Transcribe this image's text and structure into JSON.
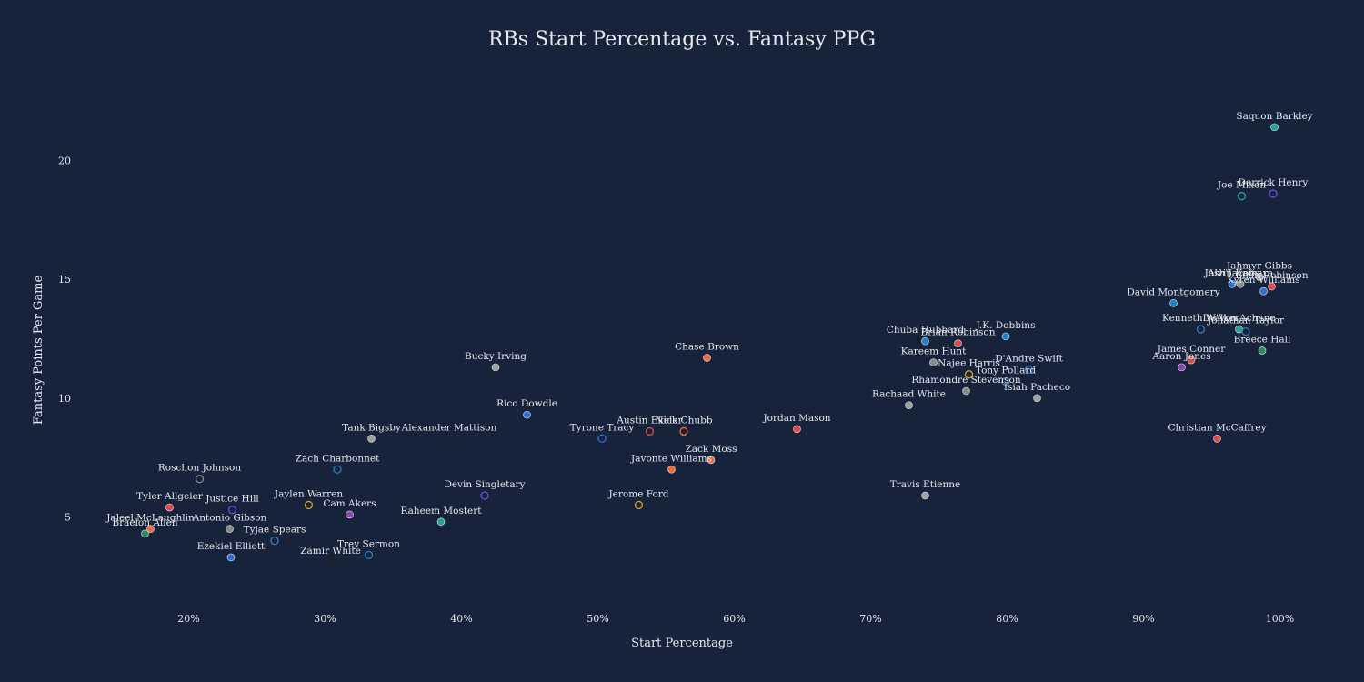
{
  "chart_data": {
    "type": "scatter",
    "title": "RBs Start Percentage vs. Fantasy PPG",
    "xlabel": "Start Percentage",
    "ylabel": "Fantasy Points Per Game",
    "xlim": [
      11.5,
      103.5
    ],
    "ylim": [
      1.5,
      23.5
    ],
    "x_ticks": [
      20,
      30,
      40,
      50,
      60,
      70,
      80,
      90,
      100
    ],
    "x_tick_labels": [
      "20%",
      "30%",
      "40%",
      "50%",
      "60%",
      "70%",
      "80%",
      "90%",
      "100%"
    ],
    "y_ticks": [
      5,
      10,
      15,
      20
    ],
    "y_tick_labels": [
      "5",
      "10",
      "15",
      "20"
    ],
    "grid": false,
    "points": [
      {
        "name": "Saquon Barkley",
        "x": 99.6,
        "y": 21.4,
        "color": "#2aa198",
        "hollow": false
      },
      {
        "name": "Derrick Henry",
        "x": 99.5,
        "y": 18.6,
        "color": "#6c4bd8",
        "hollow": true
      },
      {
        "name": "Joe Mixon",
        "x": 97.2,
        "y": 18.5,
        "color": "#2aa198",
        "hollow": true
      },
      {
        "name": "Jahmyr Gibbs",
        "x": 98.5,
        "y": 15.1,
        "color": "#a0a0a0",
        "hollow": false
      },
      {
        "name": "Josh Jacobs",
        "x": 96.5,
        "y": 14.8,
        "color": "#2f6fd6",
        "hollow": false
      },
      {
        "name": "Alvin Kamara",
        "x": 97.1,
        "y": 14.8,
        "color": "#8a8a8a",
        "hollow": false
      },
      {
        "name": "Bijan Robinson",
        "x": 99.4,
        "y": 14.7,
        "color": "#e04848",
        "hollow": false
      },
      {
        "name": "Kyren Williams",
        "x": 98.8,
        "y": 14.5,
        "color": "#2f6fd6",
        "hollow": false
      },
      {
        "name": "David Montgomery",
        "x": 92.2,
        "y": 14.0,
        "color": "#2080c8",
        "hollow": false
      },
      {
        "name": "Kenneth Walker",
        "x": 94.2,
        "y": 12.9,
        "color": "#3b7ab8",
        "hollow": true
      },
      {
        "name": "De'Von Achane",
        "x": 97.0,
        "y": 12.9,
        "color": "#2aa198",
        "hollow": false
      },
      {
        "name": "Jonathan Taylor",
        "x": 97.5,
        "y": 12.8,
        "color": "#3b7ab8",
        "hollow": true
      },
      {
        "name": "Breece Hall",
        "x": 98.7,
        "y": 12.0,
        "color": "#2e8b57",
        "hollow": false
      },
      {
        "name": "James Conner",
        "x": 93.5,
        "y": 11.6,
        "color": "#e04848",
        "hollow": false
      },
      {
        "name": "Aaron Jones",
        "x": 92.8,
        "y": 11.3,
        "color": "#8e44ad",
        "hollow": false
      },
      {
        "name": "Christian McCaffrey",
        "x": 95.4,
        "y": 8.3,
        "color": "#e04848",
        "hollow": false
      },
      {
        "name": "J.K. Dobbins",
        "x": 79.9,
        "y": 12.6,
        "color": "#2080c8",
        "hollow": false
      },
      {
        "name": "Chuba Hubbard",
        "x": 74.0,
        "y": 12.4,
        "color": "#2080c8",
        "hollow": false
      },
      {
        "name": "Brian Robinson",
        "x": 76.4,
        "y": 12.3,
        "color": "#e04848",
        "hollow": false
      },
      {
        "name": "Kareem Hunt",
        "x": 74.6,
        "y": 11.5,
        "color": "#8a8a8a",
        "hollow": false
      },
      {
        "name": "Najee Harris",
        "x": 77.2,
        "y": 11.0,
        "color": "#d4a017",
        "hollow": true
      },
      {
        "name": "D'Andre Swift",
        "x": 81.6,
        "y": 11.2,
        "color": "#2f6fd6",
        "hollow": true
      },
      {
        "name": "Tony Pollard",
        "x": 79.9,
        "y": 10.7,
        "color": "#3b7ab8",
        "hollow": true
      },
      {
        "name": "Rhamondre Stevenson",
        "x": 77.0,
        "y": 10.3,
        "color": "#8a8a8a",
        "hollow": false
      },
      {
        "name": "Isiah Pacheco",
        "x": 82.2,
        "y": 10.0,
        "color": "#a0a0a0",
        "hollow": false
      },
      {
        "name": "Rachaad White",
        "x": 72.8,
        "y": 9.7,
        "color": "#a0a0a0",
        "hollow": false
      },
      {
        "name": "Travis Etienne",
        "x": 74.0,
        "y": 5.9,
        "color": "#a0a0a0",
        "hollow": false
      },
      {
        "name": "Chase Brown",
        "x": 58.0,
        "y": 11.7,
        "color": "#f06a3b",
        "hollow": false
      },
      {
        "name": "Bucky Irving",
        "x": 42.5,
        "y": 11.3,
        "color": "#a0a0a0",
        "hollow": false
      },
      {
        "name": "Rico Dowdle",
        "x": 44.8,
        "y": 9.3,
        "color": "#2f6fd6",
        "hollow": false
      },
      {
        "name": "Jordan Mason",
        "x": 64.6,
        "y": 8.7,
        "color": "#e04848",
        "hollow": false
      },
      {
        "name": "Austin Ekeler",
        "x": 53.8,
        "y": 8.6,
        "color": "#e04848",
        "hollow": true
      },
      {
        "name": "Nick Chubb",
        "x": 56.3,
        "y": 8.6,
        "color": "#f06a3b",
        "hollow": true
      },
      {
        "name": "Tyrone Tracy",
        "x": 50.3,
        "y": 8.3,
        "color": "#2f6fd6",
        "hollow": true
      },
      {
        "name": "Tank Bigsby",
        "x": 33.4,
        "y": 8.3,
        "color": "#a0a0a0",
        "hollow": false
      },
      {
        "name": "Alexander Mattison",
        "x": 39.1,
        "y": 8.3,
        "color": "#222222",
        "hollow": true
      },
      {
        "name": "Zack Moss",
        "x": 58.3,
        "y": 7.4,
        "color": "#f06a3b",
        "hollow": false
      },
      {
        "name": "Javonte Williams",
        "x": 55.4,
        "y": 7.0,
        "color": "#f06a3b",
        "hollow": false
      },
      {
        "name": "Zach Charbonnet",
        "x": 30.9,
        "y": 7.0,
        "color": "#2080c8",
        "hollow": true
      },
      {
        "name": "Roschon Johnson",
        "x": 20.8,
        "y": 6.6,
        "color": "#8a8a8a",
        "hollow": true
      },
      {
        "name": "Devin Singletary",
        "x": 41.7,
        "y": 5.9,
        "color": "#6c4bd8",
        "hollow": true
      },
      {
        "name": "Jerome Ford",
        "x": 53.0,
        "y": 5.5,
        "color": "#d4a017",
        "hollow": true
      },
      {
        "name": "Jaylen Warren",
        "x": 28.8,
        "y": 5.5,
        "color": "#d4a017",
        "hollow": true
      },
      {
        "name": "Tyler Allgeier",
        "x": 18.6,
        "y": 5.4,
        "color": "#e04848",
        "hollow": false
      },
      {
        "name": "Justice Hill",
        "x": 23.2,
        "y": 5.3,
        "color": "#6c4bd8",
        "hollow": true
      },
      {
        "name": "Cam Akers",
        "x": 31.8,
        "y": 5.1,
        "color": "#8e44ad",
        "hollow": false
      },
      {
        "name": "Raheem Mostert",
        "x": 38.5,
        "y": 4.8,
        "color": "#2aa198",
        "hollow": false
      },
      {
        "name": "Jaleel McLaughlin",
        "x": 17.2,
        "y": 4.5,
        "color": "#f06a3b",
        "hollow": false
      },
      {
        "name": "Braelon Allen",
        "x": 16.8,
        "y": 4.3,
        "color": "#2e8b57",
        "hollow": false
      },
      {
        "name": "Antonio Gibson",
        "x": 23.0,
        "y": 4.5,
        "color": "#8a8a8a",
        "hollow": false
      },
      {
        "name": "Tyjae Spears",
        "x": 26.3,
        "y": 4.0,
        "color": "#3b7ab8",
        "hollow": true
      },
      {
        "name": "Trey Sermon",
        "x": 33.2,
        "y": 3.4,
        "color": "#2080c8",
        "hollow": true
      },
      {
        "name": "Ezekiel Elliott",
        "x": 23.1,
        "y": 3.3,
        "color": "#2f6fd6",
        "hollow": false
      },
      {
        "name": "Zamir White",
        "x": 30.4,
        "y": 3.1,
        "color": "#222222",
        "hollow": true
      }
    ]
  }
}
